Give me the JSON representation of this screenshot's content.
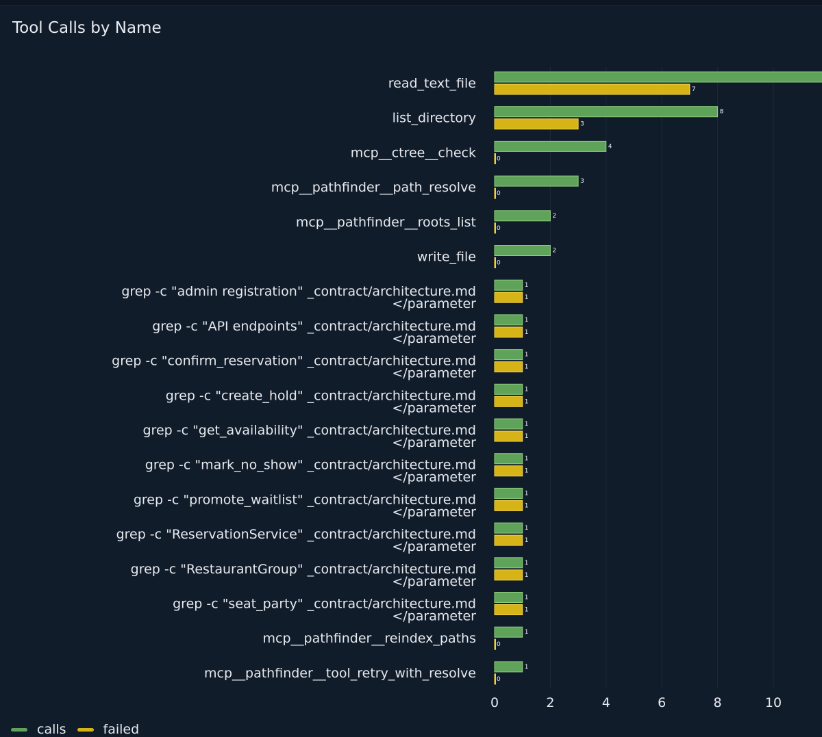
{
  "panel": {
    "title": "Tool Calls by Name"
  },
  "colors": {
    "calls": "#5fa35a",
    "failed": "#d6b417",
    "background": "#111c2b",
    "grid": "#1e2a3a",
    "text": "#e6e9ee"
  },
  "chart_data": {
    "type": "bar",
    "orientation": "horizontal",
    "title": "Tool Calls by Name",
    "categories": [
      "read_text_file",
      "list_directory",
      "mcp__ctree__check",
      "mcp__pathfinder__path_resolve",
      "mcp__pathfinder__roots_list",
      "write_file",
      "grep -c \"admin registration\" _contract/architecture.md </parameter",
      "grep -c \"API endpoints\" _contract/architecture.md </parameter",
      "grep -c \"confirm_reservation\" _contract/architecture.md </parameter",
      "grep -c \"create_hold\" _contract/architecture.md </parameter",
      "grep -c \"get_availability\" _contract/architecture.md </parameter",
      "grep -c \"mark_no_show\" _contract/architecture.md </parameter",
      "grep -c \"promote_waitlist\" _contract/architecture.md </parameter",
      "grep -c \"ReservationService\" _contract/architecture.md </parameter",
      "grep -c \"RestaurantGroup\" _contract/architecture.md </parameter",
      "grep -c \"seat_party\" _contract/architecture.md </parameter",
      "mcp__pathfinder__reindex_paths",
      "mcp__pathfinder__tool_retry_with_resolve"
    ],
    "label_lines": [
      [
        "read_text_file"
      ],
      [
        "list_directory"
      ],
      [
        "mcp__ctree__check"
      ],
      [
        "mcp__pathfinder__path_resolve"
      ],
      [
        "mcp__pathfinder__roots_list"
      ],
      [
        "write_file"
      ],
      [
        "grep -c \"admin registration\" _contract/architecture.md",
        "</parameter"
      ],
      [
        "grep -c \"API endpoints\" _contract/architecture.md",
        "</parameter"
      ],
      [
        "grep -c \"confirm_reservation\" _contract/architecture.md",
        "</parameter"
      ],
      [
        "grep -c \"create_hold\" _contract/architecture.md",
        "</parameter"
      ],
      [
        "grep -c \"get_availability\" _contract/architecture.md",
        "</parameter"
      ],
      [
        "grep -c \"mark_no_show\" _contract/architecture.md",
        "</parameter"
      ],
      [
        "grep -c \"promote_waitlist\" _contract/architecture.md",
        "</parameter"
      ],
      [
        "grep -c \"ReservationService\" _contract/architecture.md",
        "</parameter"
      ],
      [
        "grep -c \"RestaurantGroup\" _contract/architecture.md",
        "</parameter"
      ],
      [
        "grep -c \"seat_party\" _contract/architecture.md",
        "</parameter"
      ],
      [
        "mcp__pathfinder__reindex_paths"
      ],
      [
        "mcp__pathfinder__tool_retry_with_resolve"
      ]
    ],
    "series": [
      {
        "name": "calls",
        "values": [
          12,
          8,
          4,
          3,
          2,
          2,
          1,
          1,
          1,
          1,
          1,
          1,
          1,
          1,
          1,
          1,
          1,
          1
        ]
      },
      {
        "name": "failed",
        "values": [
          7,
          3,
          0,
          0,
          0,
          0,
          1,
          1,
          1,
          1,
          1,
          1,
          1,
          1,
          1,
          1,
          0,
          0
        ]
      }
    ],
    "x_ticks": [
      0,
      2,
      4,
      6,
      8,
      10
    ],
    "xlim": [
      0,
      12
    ],
    "grid": true,
    "legend": "bottom-left"
  }
}
